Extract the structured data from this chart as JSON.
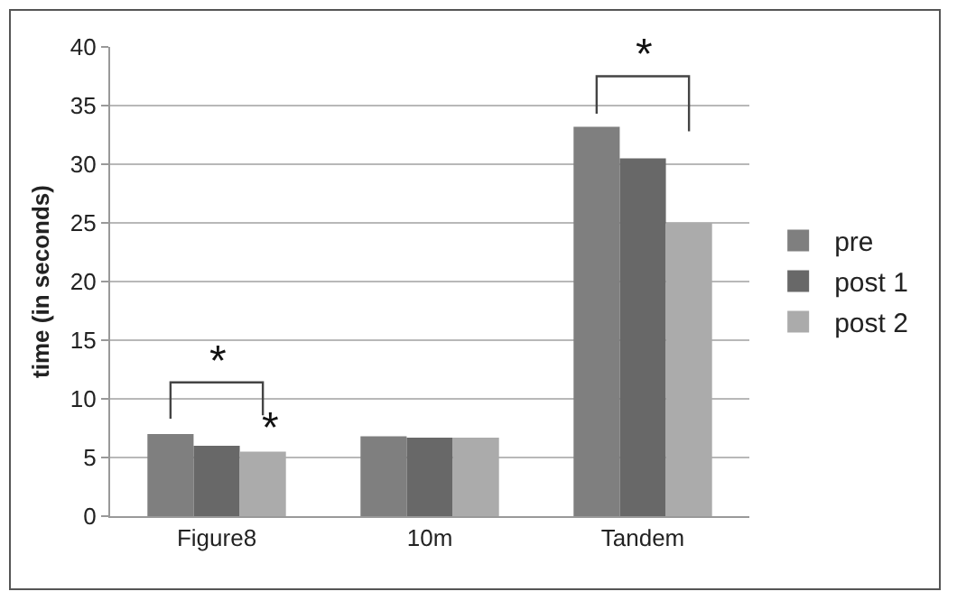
{
  "chart_data": {
    "type": "bar",
    "ylabel": "time (in seconds)",
    "categories": [
      "Figure8",
      "10m",
      "Tandem"
    ],
    "series": [
      {
        "name": "pre",
        "color": "#7f7f7f",
        "values": [
          7.0,
          6.8,
          33.2
        ]
      },
      {
        "name": "post 1",
        "color": "#686868",
        "values": [
          6.0,
          6.7,
          30.5
        ]
      },
      {
        "name": "post 2",
        "color": "#ababab",
        "values": [
          5.5,
          6.7,
          25.0
        ]
      }
    ],
    "ylim": [
      0,
      40
    ],
    "yticks": [
      0,
      5,
      10,
      15,
      20,
      25,
      30,
      35,
      40
    ],
    "grid": "y",
    "legend": "right",
    "annotations": [
      "*",
      "*",
      "*"
    ]
  }
}
